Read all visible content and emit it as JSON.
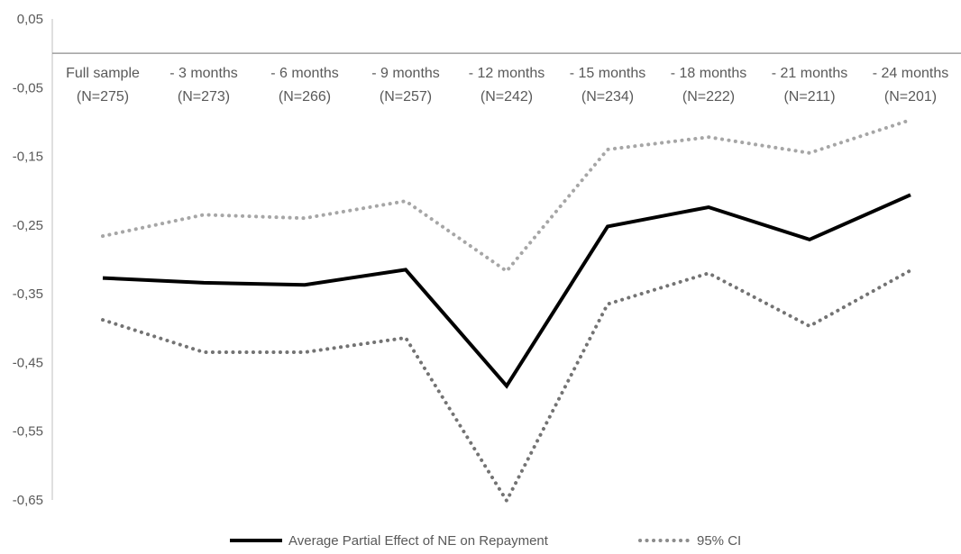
{
  "chart_data": {
    "type": "line",
    "categories": [
      {
        "line1": "Full sample",
        "line2": "(N=275)"
      },
      {
        "line1": "- 3 months",
        "line2": "(N=273)"
      },
      {
        "line1": "- 6 months",
        "line2": "(N=266)"
      },
      {
        "line1": "- 9 months",
        "line2": "(N=257)"
      },
      {
        "line1": "- 12 months",
        "line2": "(N=242)"
      },
      {
        "line1": "- 15 months",
        "line2": "(N=234)"
      },
      {
        "line1": "- 18 months",
        "line2": "(N=222)"
      },
      {
        "line1": "- 21 months",
        "line2": "(N=211)"
      },
      {
        "line1": "- 24 months",
        "line2": "(N=201)"
      }
    ],
    "series": [
      {
        "name": "Average Partial Effect of NE on Repayment",
        "style": "solid",
        "color": "#000000",
        "values": [
          -0.327,
          -0.334,
          -0.337,
          -0.315,
          -0.484,
          -0.252,
          -0.224,
          -0.271,
          -0.206
        ]
      },
      {
        "name": "95% CI",
        "style": "dotted",
        "color": "#a6a6a6",
        "values": [
          -0.266,
          -0.235,
          -0.24,
          -0.215,
          -0.317,
          -0.14,
          -0.122,
          -0.145,
          -0.097
        ]
      },
      {
        "name": "",
        "style": "dotted",
        "color": "#737373",
        "values": [
          -0.388,
          -0.435,
          -0.435,
          -0.414,
          -0.651,
          -0.365,
          -0.32,
          -0.397,
          -0.316
        ]
      }
    ],
    "yticks": [
      "0,05",
      "-0,05",
      "-0,15",
      "-0,25",
      "-0,35",
      "-0,45",
      "-0,55",
      "-0,65"
    ],
    "ylim": [
      -0.65,
      0.05
    ],
    "zero_line": 0,
    "legend": {
      "position": "bottom",
      "items": [
        "Average Partial Effect of NE on Repayment",
        "95% CI"
      ]
    },
    "grid": false
  }
}
